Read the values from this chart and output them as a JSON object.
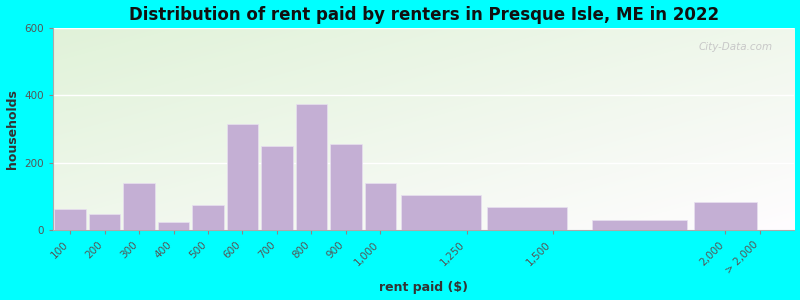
{
  "title": "Distribution of rent paid by renters in Presque Isle, ME in 2022",
  "xlabel": "rent paid ($)",
  "ylabel": "households",
  "bar_color": "#c4afd4",
  "bar_edge_color": "#e8e0f0",
  "categories": [
    "100",
    "200",
    "300",
    "400",
    "500",
    "600",
    "700",
    "800",
    "900",
    "1,000",
    "1,250",
    "1,500",
    "2,000",
    "> 2,000"
  ],
  "left_edges": [
    50,
    150,
    250,
    350,
    450,
    550,
    650,
    750,
    850,
    950,
    1050,
    1300,
    1600,
    1900
  ],
  "widths": [
    100,
    100,
    100,
    100,
    100,
    100,
    100,
    100,
    100,
    100,
    250,
    250,
    300,
    200
  ],
  "values": [
    65,
    50,
    140,
    25,
    75,
    315,
    250,
    375,
    255,
    140,
    105,
    70,
    30,
    85
  ],
  "tick_positions": [
    100,
    200,
    300,
    400,
    500,
    600,
    700,
    800,
    900,
    1000,
    1250,
    1500,
    2000,
    2100
  ],
  "ylim": [
    0,
    600
  ],
  "yticks": [
    0,
    200,
    400,
    600
  ],
  "outer_bg": "#00ffff",
  "title_fontsize": 12,
  "axis_label_fontsize": 9,
  "tick_fontsize": 7.5
}
